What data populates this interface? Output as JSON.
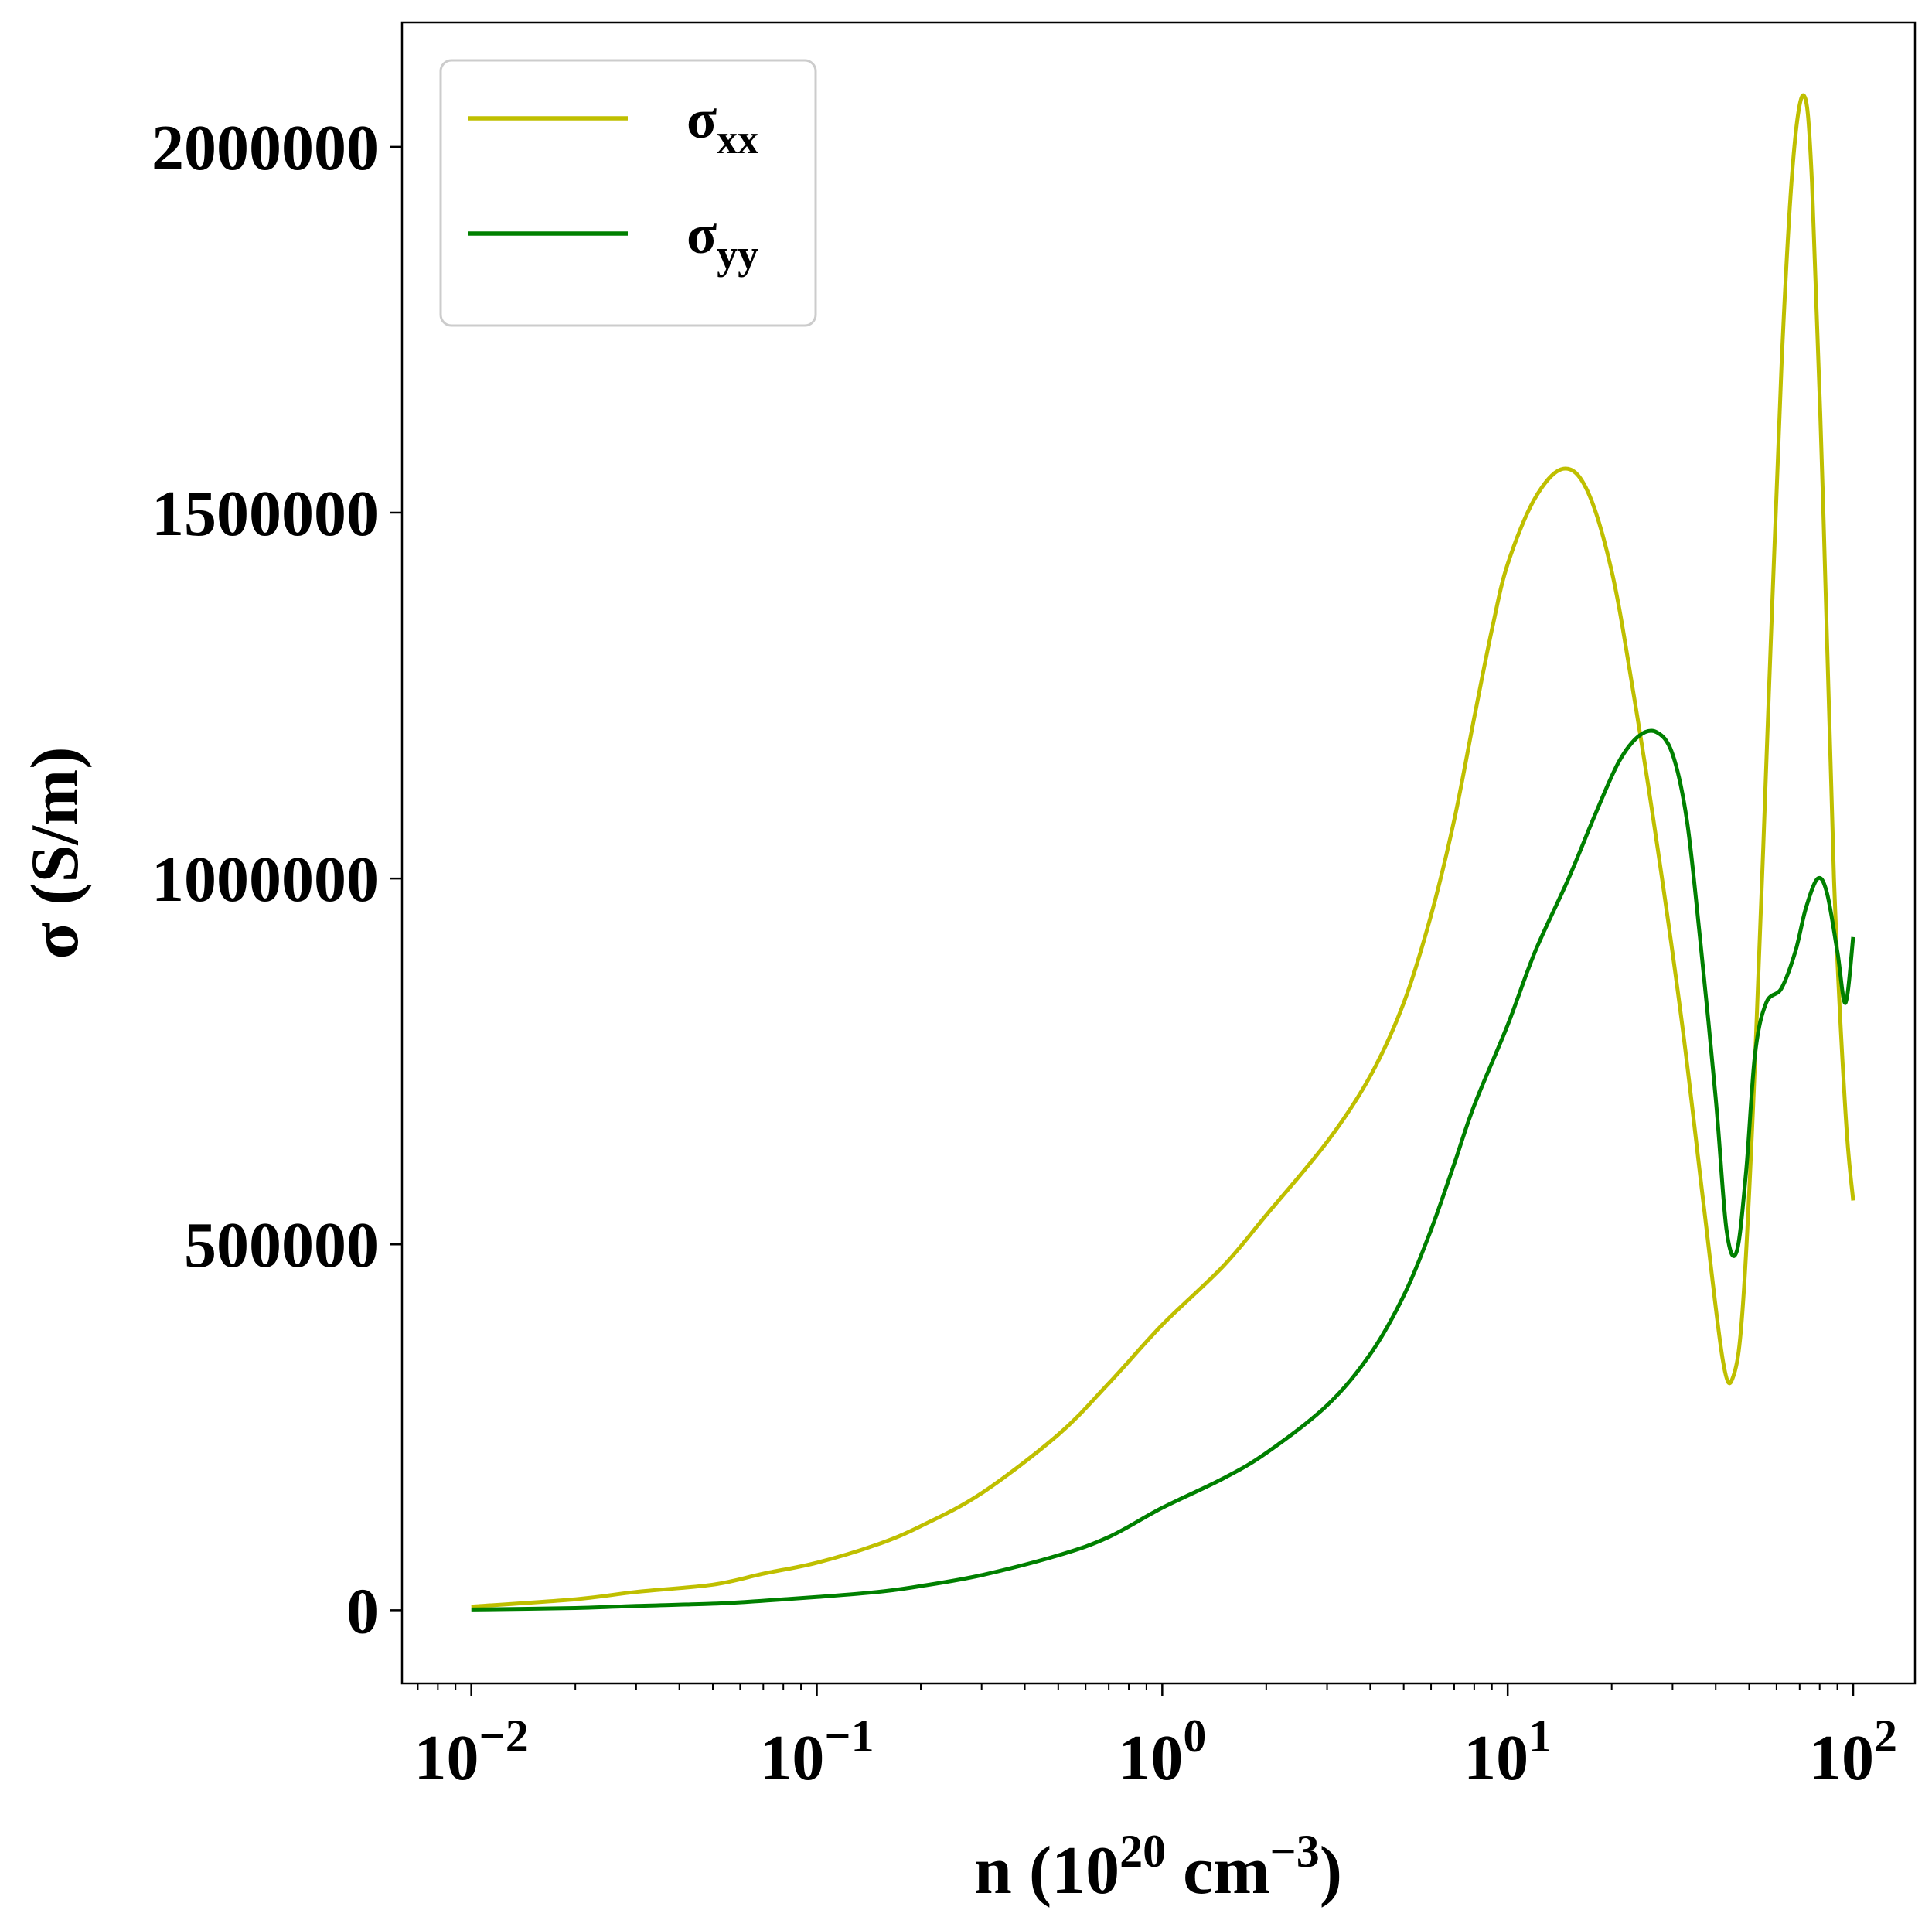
{
  "chart_data": {
    "type": "line",
    "xlabel": {
      "base": "n (10",
      "sup1": "20",
      "mid": " cm",
      "sup2": "−3",
      "end": ")"
    },
    "ylabel": "σ (S/m)",
    "x_scale": "log",
    "xlim": [
      0.0063,
      151
    ],
    "ylim": [
      -100000,
      2170000
    ],
    "x_ticks": [
      {
        "value": 0.01,
        "base": "10",
        "exp": "−2"
      },
      {
        "value": 0.1,
        "base": "10",
        "exp": "−1"
      },
      {
        "value": 1,
        "base": "10",
        "exp": "0"
      },
      {
        "value": 10,
        "base": "10",
        "exp": "1"
      },
      {
        "value": 100,
        "base": "10",
        "exp": "2"
      }
    ],
    "y_ticks": [
      {
        "value": 0,
        "label": "0"
      },
      {
        "value": 500000,
        "label": "500000"
      },
      {
        "value": 1000000,
        "label": "1000000"
      },
      {
        "value": 1500000,
        "label": "1500000"
      },
      {
        "value": 2000000,
        "label": "2000000"
      }
    ],
    "grid": false,
    "legend_position": "top-left",
    "series": [
      {
        "name": "σ",
        "subscript": "xx",
        "color": "#bfbf00",
        "points": [
          [
            0.01,
            5000
          ],
          [
            0.02,
            15000
          ],
          [
            0.03,
            25000
          ],
          [
            0.05,
            35000
          ],
          [
            0.07,
            50000
          ],
          [
            0.1,
            65000
          ],
          [
            0.15,
            90000
          ],
          [
            0.2,
            115000
          ],
          [
            0.3,
            160000
          ],
          [
            0.5,
            240000
          ],
          [
            0.7,
            310000
          ],
          [
            1.0,
            390000
          ],
          [
            1.5,
            470000
          ],
          [
            2.0,
            540000
          ],
          [
            3.0,
            640000
          ],
          [
            4.0,
            730000
          ],
          [
            5.0,
            830000
          ],
          [
            6.0,
            950000
          ],
          [
            7.0,
            1080000
          ],
          [
            8.0,
            1220000
          ],
          [
            9.0,
            1340000
          ],
          [
            10.0,
            1430000
          ],
          [
            12.0,
            1520000
          ],
          [
            14.5,
            1560000
          ],
          [
            17.0,
            1530000
          ],
          [
            20.0,
            1420000
          ],
          [
            23.0,
            1260000
          ],
          [
            27.0,
            1050000
          ],
          [
            32.0,
            800000
          ],
          [
            37.0,
            550000
          ],
          [
            42.0,
            340000
          ],
          [
            45.0,
            320000
          ],
          [
            48.0,
            420000
          ],
          [
            52.0,
            750000
          ],
          [
            57.0,
            1250000
          ],
          [
            62.0,
            1700000
          ],
          [
            67.0,
            1980000
          ],
          [
            72.0,
            2070000
          ],
          [
            76.0,
            1950000
          ],
          [
            82.0,
            1500000
          ],
          [
            88.0,
            1000000
          ],
          [
            95.0,
            680000
          ],
          [
            100.0,
            560000
          ]
        ]
      },
      {
        "name": "σ",
        "subscript": "yy",
        "color": "#008000",
        "points": [
          [
            0.01,
            1000
          ],
          [
            0.02,
            3000
          ],
          [
            0.03,
            6000
          ],
          [
            0.05,
            9000
          ],
          [
            0.07,
            13000
          ],
          [
            0.1,
            18000
          ],
          [
            0.15,
            25000
          ],
          [
            0.2,
            33000
          ],
          [
            0.3,
            48000
          ],
          [
            0.5,
            75000
          ],
          [
            0.7,
            100000
          ],
          [
            1.0,
            140000
          ],
          [
            1.5,
            180000
          ],
          [
            2.0,
            215000
          ],
          [
            3.0,
            280000
          ],
          [
            4.0,
            350000
          ],
          [
            5.0,
            430000
          ],
          [
            6.0,
            520000
          ],
          [
            7.0,
            610000
          ],
          [
            8.0,
            690000
          ],
          [
            10.0,
            800000
          ],
          [
            12.0,
            900000
          ],
          [
            15.0,
            1000000
          ],
          [
            18.0,
            1090000
          ],
          [
            21.0,
            1160000
          ],
          [
            24.0,
            1195000
          ],
          [
            27.0,
            1200000
          ],
          [
            30.0,
            1170000
          ],
          [
            33.0,
            1080000
          ],
          [
            36.0,
            920000
          ],
          [
            40.0,
            700000
          ],
          [
            43.0,
            520000
          ],
          [
            46.0,
            490000
          ],
          [
            49.0,
            600000
          ],
          [
            52.0,
            760000
          ],
          [
            56.0,
            830000
          ],
          [
            62.0,
            850000
          ],
          [
            68.0,
            900000
          ],
          [
            73.0,
            960000
          ],
          [
            79.0,
            1000000
          ],
          [
            84.0,
            980000
          ],
          [
            90.0,
            900000
          ],
          [
            95.0,
            830000
          ],
          [
            100.0,
            920000
          ]
        ]
      }
    ]
  }
}
